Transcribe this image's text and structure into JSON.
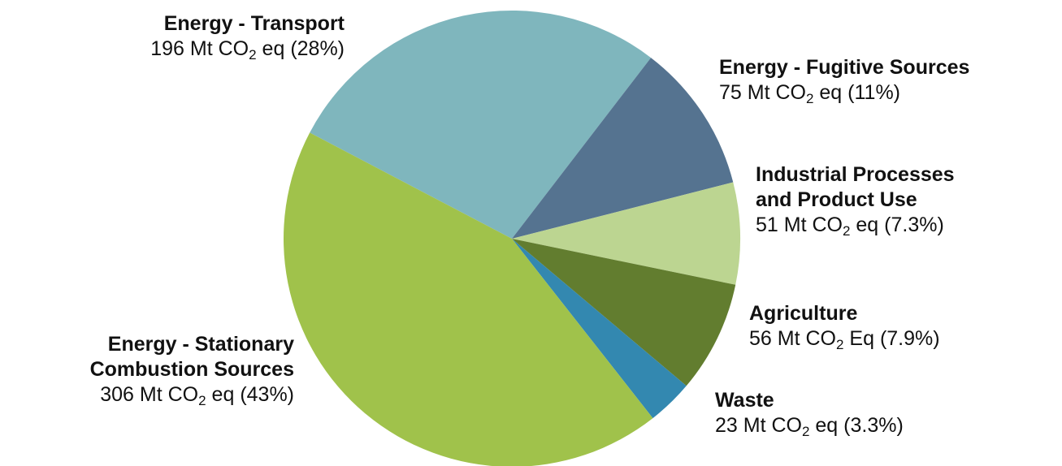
{
  "chart_data": {
    "type": "pie",
    "title": "",
    "unit_prefix": "Mt CO",
    "unit_subscript": "2",
    "slices": [
      {
        "id": "transport",
        "name_lines": [
          "Energy - Transport"
        ],
        "value": 196,
        "unit_tail": "eq",
        "percent_label": "(28%)",
        "color": "#7fb6bd"
      },
      {
        "id": "fugitive",
        "name_lines": [
          "Energy - Fugitive Sources"
        ],
        "value": 75,
        "unit_tail": "eq",
        "percent_label": "(11%)",
        "color": "#557390"
      },
      {
        "id": "industrial",
        "name_lines": [
          "Industrial Processes",
          "and Product Use"
        ],
        "value": 51,
        "unit_tail": "eq",
        "percent_label": "(7.3%)",
        "color": "#bcd591"
      },
      {
        "id": "agriculture",
        "name_lines": [
          "Agriculture"
        ],
        "value": 56,
        "unit_tail": "Eq",
        "percent_label": "(7.9%)",
        "color": "#627d2f"
      },
      {
        "id": "waste",
        "name_lines": [
          "Waste"
        ],
        "value": 23,
        "unit_tail": "eq",
        "percent_label": "(3.3%)",
        "color": "#3388b0"
      },
      {
        "id": "stationary",
        "name_lines": [
          "Energy - Stationary",
          "Combustion Sources"
        ],
        "value": 306,
        "unit_tail": "eq",
        "percent_label": "(43%)",
        "color": "#a0c24b"
      }
    ]
  }
}
